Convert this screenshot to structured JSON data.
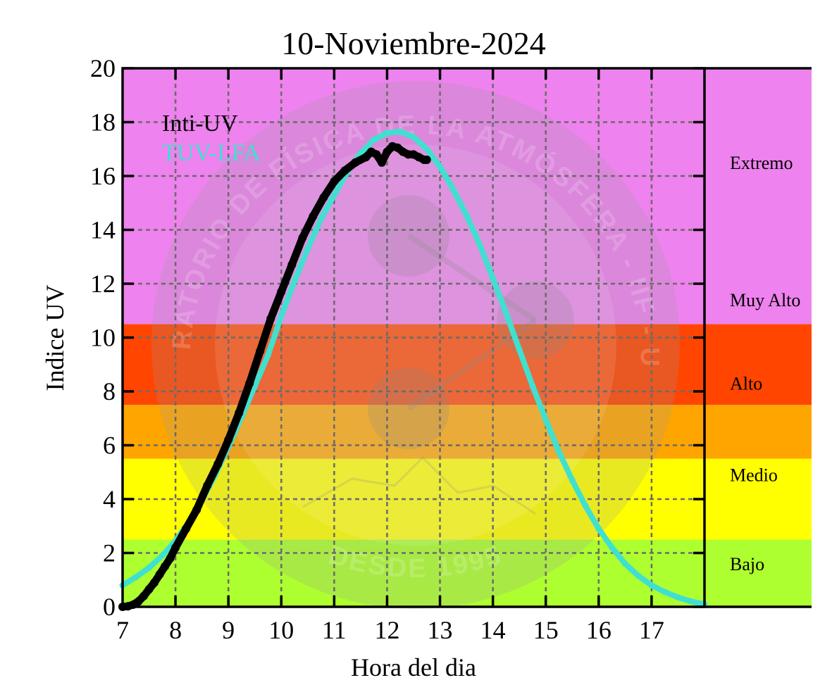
{
  "chart_data": {
    "type": "line",
    "title": "10-Noviembre-2024",
    "xlabel": "Hora del dia",
    "ylabel": "Indice UV",
    "xlim": [
      7,
      18
    ],
    "ylim": [
      0,
      20
    ],
    "x_ticks": [
      7,
      8,
      9,
      10,
      11,
      12,
      13,
      14,
      15,
      16,
      17
    ],
    "y_ticks": [
      0,
      2,
      4,
      6,
      8,
      10,
      12,
      14,
      16,
      18,
      20
    ],
    "grid": true,
    "legend_position": "top-left",
    "series": [
      {
        "name": "Inti-UV",
        "color": "#000000",
        "x": [
          7.0,
          7.1,
          7.2,
          7.3,
          7.4,
          7.5,
          7.6,
          7.7,
          7.8,
          7.9,
          8.0,
          8.2,
          8.4,
          8.6,
          8.8,
          9.0,
          9.2,
          9.4,
          9.6,
          9.8,
          10.0,
          10.2,
          10.4,
          10.6,
          10.8,
          11.0,
          11.2,
          11.4,
          11.6,
          11.7,
          11.8,
          11.9,
          12.0,
          12.1,
          12.2,
          12.3,
          12.4,
          12.5,
          12.6,
          12.7,
          12.75
        ],
        "y": [
          0.0,
          0.02,
          0.08,
          0.2,
          0.4,
          0.65,
          0.9,
          1.2,
          1.5,
          1.8,
          2.2,
          2.9,
          3.6,
          4.5,
          5.3,
          6.2,
          7.2,
          8.3,
          9.5,
          10.7,
          11.7,
          12.7,
          13.7,
          14.5,
          15.2,
          15.8,
          16.2,
          16.5,
          16.7,
          16.9,
          16.8,
          16.5,
          16.9,
          17.1,
          17.05,
          16.9,
          16.8,
          16.8,
          16.7,
          16.6,
          16.6
        ]
      },
      {
        "name": "TUV-LFA",
        "color": "#40e0d0",
        "x": [
          7.0,
          7.25,
          7.5,
          7.75,
          8.0,
          8.25,
          8.5,
          8.75,
          9.0,
          9.25,
          9.5,
          9.75,
          10.0,
          10.25,
          10.5,
          10.75,
          11.0,
          11.25,
          11.5,
          11.75,
          12.0,
          12.25,
          12.5,
          12.75,
          13.0,
          13.25,
          13.5,
          13.75,
          14.0,
          14.25,
          14.5,
          14.75,
          15.0,
          15.25,
          15.5,
          15.75,
          16.0,
          16.25,
          16.5,
          16.75,
          17.0,
          17.25,
          17.5,
          17.75,
          18.0
        ],
        "y": [
          0.8,
          1.1,
          1.45,
          1.9,
          2.45,
          3.15,
          3.95,
          4.9,
          5.95,
          7.05,
          8.2,
          9.35,
          10.8,
          12.1,
          13.3,
          14.4,
          15.3,
          16.15,
          16.85,
          17.35,
          17.6,
          17.65,
          17.45,
          17.0,
          16.35,
          15.5,
          14.55,
          13.45,
          12.2,
          10.9,
          9.55,
          8.2,
          6.95,
          5.75,
          4.7,
          3.75,
          2.9,
          2.2,
          1.6,
          1.15,
          0.8,
          0.55,
          0.35,
          0.2,
          0.1
        ]
      }
    ],
    "uv_bands": [
      {
        "label": "Bajo",
        "from": 0,
        "to": 2.5,
        "color": "#adff2f"
      },
      {
        "label": "Medio",
        "from": 2.5,
        "to": 5.5,
        "color": "#ffff00"
      },
      {
        "label": "",
        "from": 5.5,
        "to": 7.5,
        "color": "#ffa500"
      },
      {
        "label": "Alto",
        "from": 7.5,
        "to": 10.5,
        "color": "#ff4500"
      },
      {
        "label": "Extremo",
        "from": 10.5,
        "to": 20,
        "color": "#ee82ee"
      }
    ],
    "band_labels": [
      {
        "label": "Extremo",
        "y": 16.5
      },
      {
        "label": "Muy Alto",
        "y": 11.4
      },
      {
        "label": "Alto",
        "y": 8.3
      },
      {
        "label": "Medio",
        "y": 4.9
      },
      {
        "label": "Bajo",
        "y": 1.6
      }
    ]
  },
  "watermark": {
    "arc_text": "LABORATORIO DE FÍSICA DE LA ATMÓSFERA - IIF - UMSA",
    "bottom_text": "DESDE 1995"
  }
}
